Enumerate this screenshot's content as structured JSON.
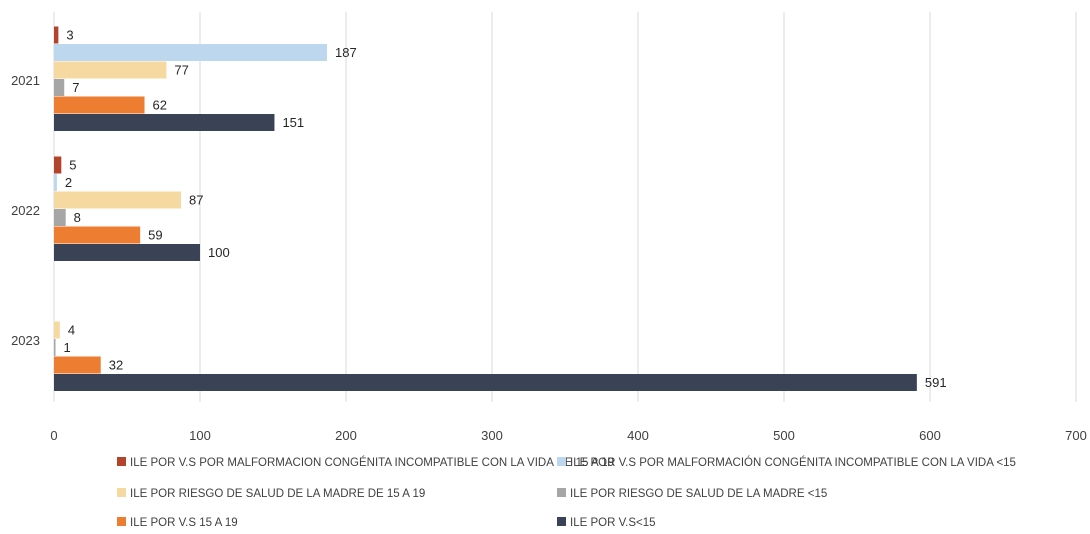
{
  "chart_data": {
    "type": "bar",
    "orientation": "horizontal",
    "categories": [
      "2021",
      "2022",
      "2023"
    ],
    "series": [
      {
        "name": "ILE POR V.S POR MALFORMACION CONGÉNITA INCOMPATIBLE CON LA VIDA  DE 15 A 19",
        "color": "#b4432c",
        "values": [
          3,
          5,
          null
        ]
      },
      {
        "name": "ILE POR V.S POR MALFORMACIÓN CONGÉNITA INCOMPATIBLE CON LA VIDA <15",
        "color": "#bdd7ee",
        "values": [
          187,
          2,
          null
        ]
      },
      {
        "name": "ILE POR RIESGO DE SALUD DE LA MADRE DE  15 A 19",
        "color": "#f5d9a1",
        "values": [
          77,
          87,
          4
        ]
      },
      {
        "name": "ILE POR RIESGO DE SALUD DE LA MADRE <15",
        "color": "#a6a6a6",
        "values": [
          7,
          8,
          1
        ]
      },
      {
        "name": "ILE POR V.S 15 A 19",
        "color": "#ed7d31",
        "values": [
          62,
          59,
          32
        ]
      },
      {
        "name": "ILE POR V.S<15",
        "color": "#3a4356",
        "values": [
          151,
          100,
          591
        ]
      }
    ],
    "xlim": [
      0,
      700
    ],
    "xticks": [
      "0",
      "100",
      "200",
      "300",
      "400",
      "500",
      "600",
      "700"
    ],
    "grid": true,
    "legend_position": "bottom",
    "title": "",
    "xlabel": "",
    "ylabel": ""
  }
}
